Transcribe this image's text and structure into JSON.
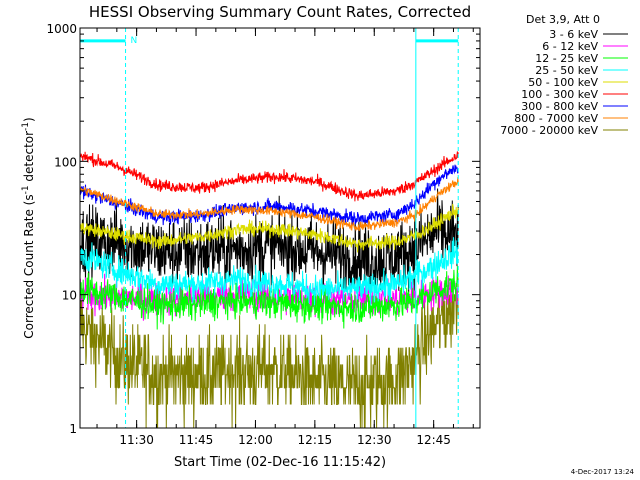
{
  "chart_data": {
    "type": "line",
    "title": "HESSI Observing Summary Count Rates, Corrected",
    "xlabel": "Start Time (02-Dec-16 11:15:42)",
    "ylabel": "Corrected Count Rate (s⁻¹ detector⁻¹)",
    "ylabel_parts": [
      "Corrected Count Rate (s",
      "-1",
      " detector",
      "-1",
      ")"
    ],
    "yscale": "log",
    "ylim": [
      1,
      1000
    ],
    "xlim_minutes": [
      0,
      101
    ],
    "x_ticks": [
      {
        "label": "11:30",
        "min": 14.3
      },
      {
        "label": "11:45",
        "min": 29.3
      },
      {
        "label": "12:00",
        "min": 44.3
      },
      {
        "label": "12:15",
        "min": 59.3
      },
      {
        "label": "12:30",
        "min": 74.3
      },
      {
        "label": "12:45",
        "min": 89.3
      }
    ],
    "y_ticks": [
      {
        "label": "1",
        "value": 1
      },
      {
        "label": "10",
        "value": 10
      },
      {
        "label": "100",
        "value": 100
      },
      {
        "label": "1000",
        "value": 1000
      }
    ],
    "legend_header": "Det 3,9, Att 0",
    "legend_position": "top-right outside",
    "series": [
      {
        "name": "3 - 6 keV",
        "color": "#000000",
        "profile": [
          [
            0,
            25
          ],
          [
            10,
            25
          ],
          [
            20,
            21
          ],
          [
            30,
            21
          ],
          [
            40,
            22
          ],
          [
            50,
            23
          ],
          [
            60,
            21
          ],
          [
            70,
            19
          ],
          [
            75,
            18
          ],
          [
            80,
            19
          ],
          [
            85,
            23
          ],
          [
            90,
            30
          ],
          [
            95,
            28
          ]
        ],
        "noise": 0.3
      },
      {
        "name": "6 - 12 keV",
        "color": "#ff00ff",
        "profile": [
          [
            0,
            10
          ],
          [
            10,
            9.5
          ],
          [
            20,
            9.2
          ],
          [
            30,
            9.4
          ],
          [
            40,
            10
          ],
          [
            50,
            9.5
          ],
          [
            60,
            9.2
          ],
          [
            70,
            9
          ],
          [
            80,
            9.2
          ],
          [
            85,
            9.5
          ],
          [
            90,
            10.5
          ],
          [
            95,
            11
          ]
        ],
        "noise": 0.14
      },
      {
        "name": "12 - 25 keV",
        "color": "#00ff00",
        "profile": [
          [
            0,
            11
          ],
          [
            10,
            9.5
          ],
          [
            20,
            8.3
          ],
          [
            30,
            8.5
          ],
          [
            40,
            9
          ],
          [
            50,
            8.6
          ],
          [
            60,
            8.3
          ],
          [
            70,
            8
          ],
          [
            80,
            8.4
          ],
          [
            85,
            9
          ],
          [
            90,
            11
          ],
          [
            95,
            12
          ]
        ],
        "noise": 0.14
      },
      {
        "name": "25 - 50 keV",
        "color": "#00ffff",
        "profile": [
          [
            0,
            20
          ],
          [
            10,
            15
          ],
          [
            20,
            12
          ],
          [
            30,
            12
          ],
          [
            40,
            13
          ],
          [
            50,
            12
          ],
          [
            60,
            11
          ],
          [
            70,
            11
          ],
          [
            80,
            12
          ],
          [
            85,
            14
          ],
          [
            90,
            17
          ],
          [
            95,
            21
          ]
        ],
        "noise": 0.12
      },
      {
        "name": "50 - 100 keV",
        "color": "#dddd00",
        "profile": [
          [
            0,
            32
          ],
          [
            10,
            28
          ],
          [
            20,
            25
          ],
          [
            30,
            27
          ],
          [
            40,
            31
          ],
          [
            50,
            31
          ],
          [
            60,
            28
          ],
          [
            70,
            24
          ],
          [
            80,
            25
          ],
          [
            85,
            28
          ],
          [
            90,
            34
          ],
          [
            95,
            43
          ]
        ],
        "noise": 0.06
      },
      {
        "name": "100 - 300 keV",
        "color": "#ff0000",
        "profile": [
          [
            0,
            110
          ],
          [
            10,
            90
          ],
          [
            20,
            66
          ],
          [
            30,
            63
          ],
          [
            40,
            72
          ],
          [
            50,
            77
          ],
          [
            60,
            70
          ],
          [
            70,
            55
          ],
          [
            80,
            60
          ],
          [
            85,
            70
          ],
          [
            90,
            88
          ],
          [
            95,
            110
          ]
        ],
        "noise": 0.05
      },
      {
        "name": "300 - 800 keV",
        "color": "#0000ff",
        "profile": [
          [
            0,
            60
          ],
          [
            10,
            48
          ],
          [
            20,
            38
          ],
          [
            30,
            39
          ],
          [
            40,
            45
          ],
          [
            50,
            46
          ],
          [
            60,
            42
          ],
          [
            70,
            37
          ],
          [
            80,
            40
          ],
          [
            85,
            50
          ],
          [
            90,
            72
          ],
          [
            95,
            90
          ]
        ],
        "noise": 0.06
      },
      {
        "name": "800 - 7000 keV",
        "color": "#ff8000",
        "profile": [
          [
            0,
            62
          ],
          [
            10,
            50
          ],
          [
            20,
            40
          ],
          [
            30,
            40
          ],
          [
            40,
            44
          ],
          [
            50,
            42
          ],
          [
            60,
            38
          ],
          [
            70,
            32
          ],
          [
            80,
            35
          ],
          [
            85,
            40
          ],
          [
            90,
            55
          ],
          [
            95,
            70
          ]
        ],
        "noise": 0.04
      },
      {
        "name": "7000 - 20000 keV",
        "color": "#808000",
        "profile": [
          [
            0,
            6
          ],
          [
            3,
            5
          ],
          [
            10,
            3.3
          ],
          [
            20,
            2.5
          ],
          [
            30,
            2.5
          ],
          [
            40,
            2.7
          ],
          [
            50,
            2.7
          ],
          [
            60,
            2.2
          ],
          [
            70,
            2
          ],
          [
            80,
            2.3
          ],
          [
            85,
            3.5
          ],
          [
            90,
            6
          ],
          [
            95,
            9
          ]
        ],
        "noise": 0.35
      }
    ],
    "intervals": [
      {
        "label": "N",
        "start_min": 0,
        "end_min": 11.5,
        "color": "#00ffff"
      },
      {
        "label": "",
        "start_min": 84.8,
        "end_min": 95.5,
        "color": "#00ffff"
      }
    ],
    "bar_value": 800
  },
  "timestamp": "4-Dec-2017 13:24"
}
